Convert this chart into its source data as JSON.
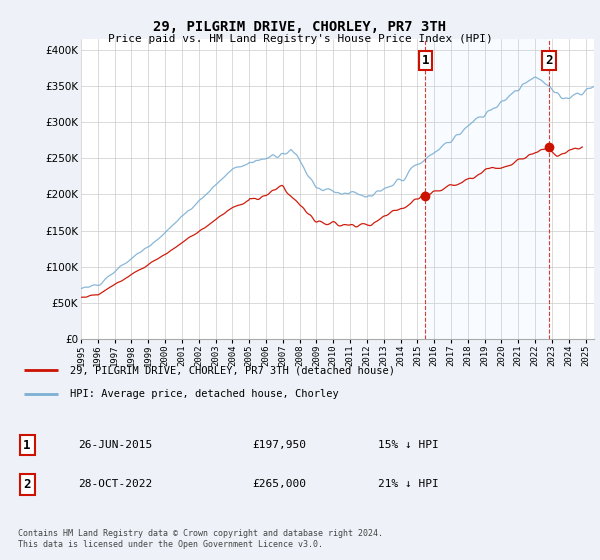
{
  "title": "29, PILGRIM DRIVE, CHORLEY, PR7 3TH",
  "subtitle": "Price paid vs. HM Land Registry's House Price Index (HPI)",
  "ytick_values": [
    0,
    50000,
    100000,
    150000,
    200000,
    250000,
    300000,
    350000,
    400000
  ],
  "ylim": [
    0,
    415000
  ],
  "xlim_start": 1995,
  "xlim_end": 2025.5,
  "hpi_color": "#7bafd4",
  "hpi_fill_color": "#ddeeff",
  "price_color": "#cc1100",
  "vline_color": "#cc1100",
  "marker1_date": 2015.48,
  "marker1_price": 197950,
  "marker2_date": 2022.83,
  "marker2_price": 265000,
  "annotation1_label": "26-JUN-2015",
  "annotation1_price": "£197,950",
  "annotation1_note": "15% ↓ HPI",
  "annotation2_label": "28-OCT-2022",
  "annotation2_price": "£265,000",
  "annotation2_note": "21% ↓ HPI",
  "legend_price_label": "29, PILGRIM DRIVE, CHORLEY, PR7 3TH (detached house)",
  "legend_hpi_label": "HPI: Average price, detached house, Chorley",
  "footer": "Contains HM Land Registry data © Crown copyright and database right 2024.\nThis data is licensed under the Open Government Licence v3.0.",
  "background_color": "#eef2f8",
  "plot_bg_color": "#ffffff"
}
